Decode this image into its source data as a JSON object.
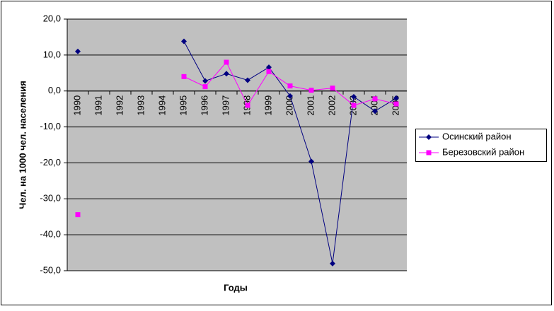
{
  "chart_data": {
    "type": "line",
    "y_label": "Чел. на 1000 чел. населения",
    "x_label": "Годы",
    "categories": [
      "1990",
      "1991",
      "1992",
      "1993",
      "1994",
      "1995",
      "1996",
      "1997",
      "1998",
      "1999",
      "2000",
      "2001",
      "2002",
      "2003",
      "2004",
      "2005"
    ],
    "series": [
      {
        "name": "Осинский район",
        "color": "#000080",
        "marker": "diamond",
        "values": [
          11,
          null,
          null,
          null,
          null,
          13.8,
          2.8,
          4.8,
          3,
          6.6,
          -1.4,
          -19.6,
          -48,
          -1.6,
          -5.6,
          -2
        ]
      },
      {
        "name": "Березовский район",
        "color": "#ff00ff",
        "marker": "square",
        "values": [
          -34.4,
          null,
          null,
          null,
          null,
          4,
          1.2,
          8,
          -4,
          5.4,
          1.4,
          0.2,
          0.8,
          -4,
          -2.2,
          -3.6
        ]
      }
    ],
    "ylim": [
      -50,
      20
    ],
    "yticks": [
      {
        "value": -50,
        "label": "-50,0"
      },
      {
        "value": -40,
        "label": "-40,0"
      },
      {
        "value": -30,
        "label": "-30,0"
      },
      {
        "value": -20,
        "label": "-20,0"
      },
      {
        "value": -10,
        "label": "-10,0"
      },
      {
        "value": 0,
        "label": "0,0"
      },
      {
        "value": 10,
        "label": "10,0"
      },
      {
        "value": 20,
        "label": "20,0"
      }
    ],
    "grid": true,
    "plot_background": "#c0c0c0",
    "legend": "right"
  }
}
